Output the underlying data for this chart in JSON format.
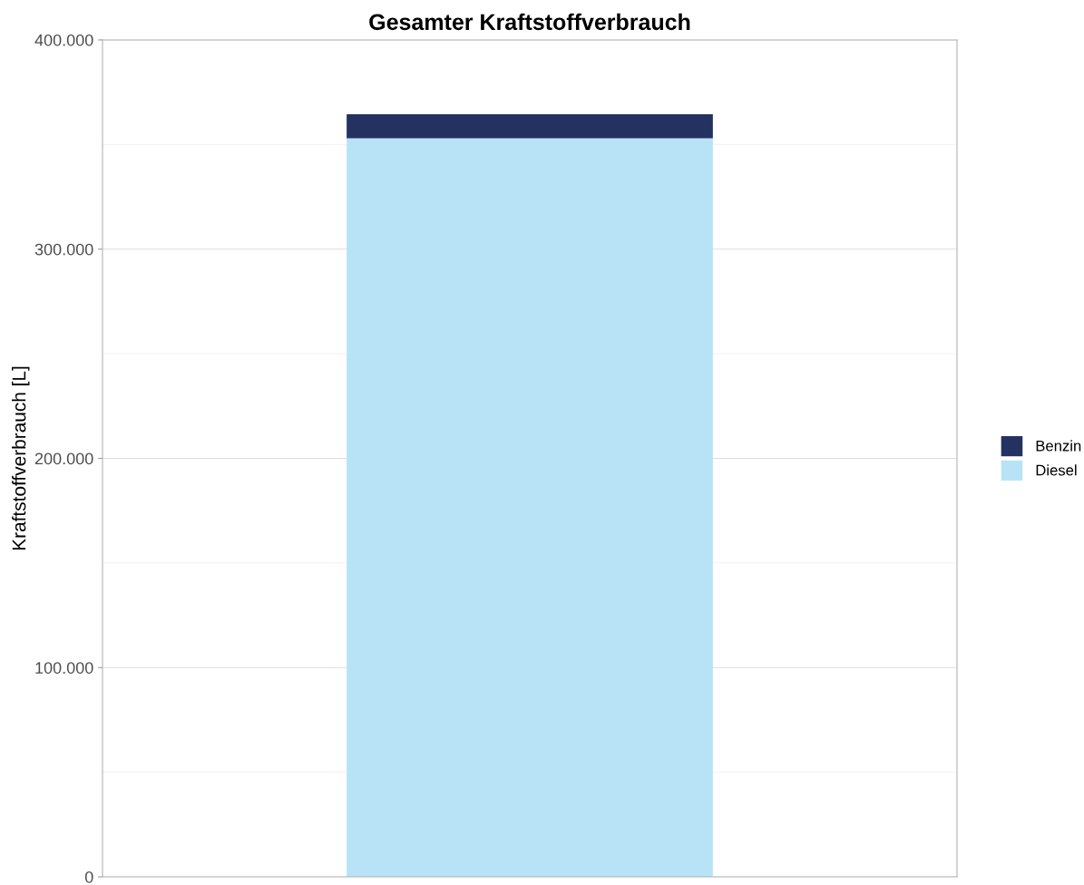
{
  "chart_data": {
    "type": "bar",
    "title": "Gesamter Kraftstoffverbrauch",
    "ylabel": "Kraftstoffverbrauch [L]",
    "categories": [
      null
    ],
    "stacked": true,
    "series": [
      {
        "name": "Diesel",
        "color": "#b8e3f7",
        "values": [
          353000
        ]
      },
      {
        "name": "Benzin",
        "color": "#233260",
        "values": [
          11500
        ]
      }
    ],
    "ylim": [
      0,
      400000
    ],
    "yticks": [
      {
        "value": 0,
        "label": "0"
      },
      {
        "value": 50000,
        "label": null
      },
      {
        "value": 100000,
        "label": "100.000"
      },
      {
        "value": 150000,
        "label": null
      },
      {
        "value": 200000,
        "label": "200.000"
      },
      {
        "value": 250000,
        "label": null
      },
      {
        "value": 300000,
        "label": "300.000"
      },
      {
        "value": 350000,
        "label": null
      },
      {
        "value": 400000,
        "label": "400.000"
      }
    ],
    "grid": "y",
    "legend": "right",
    "tick_labels": "y"
  }
}
